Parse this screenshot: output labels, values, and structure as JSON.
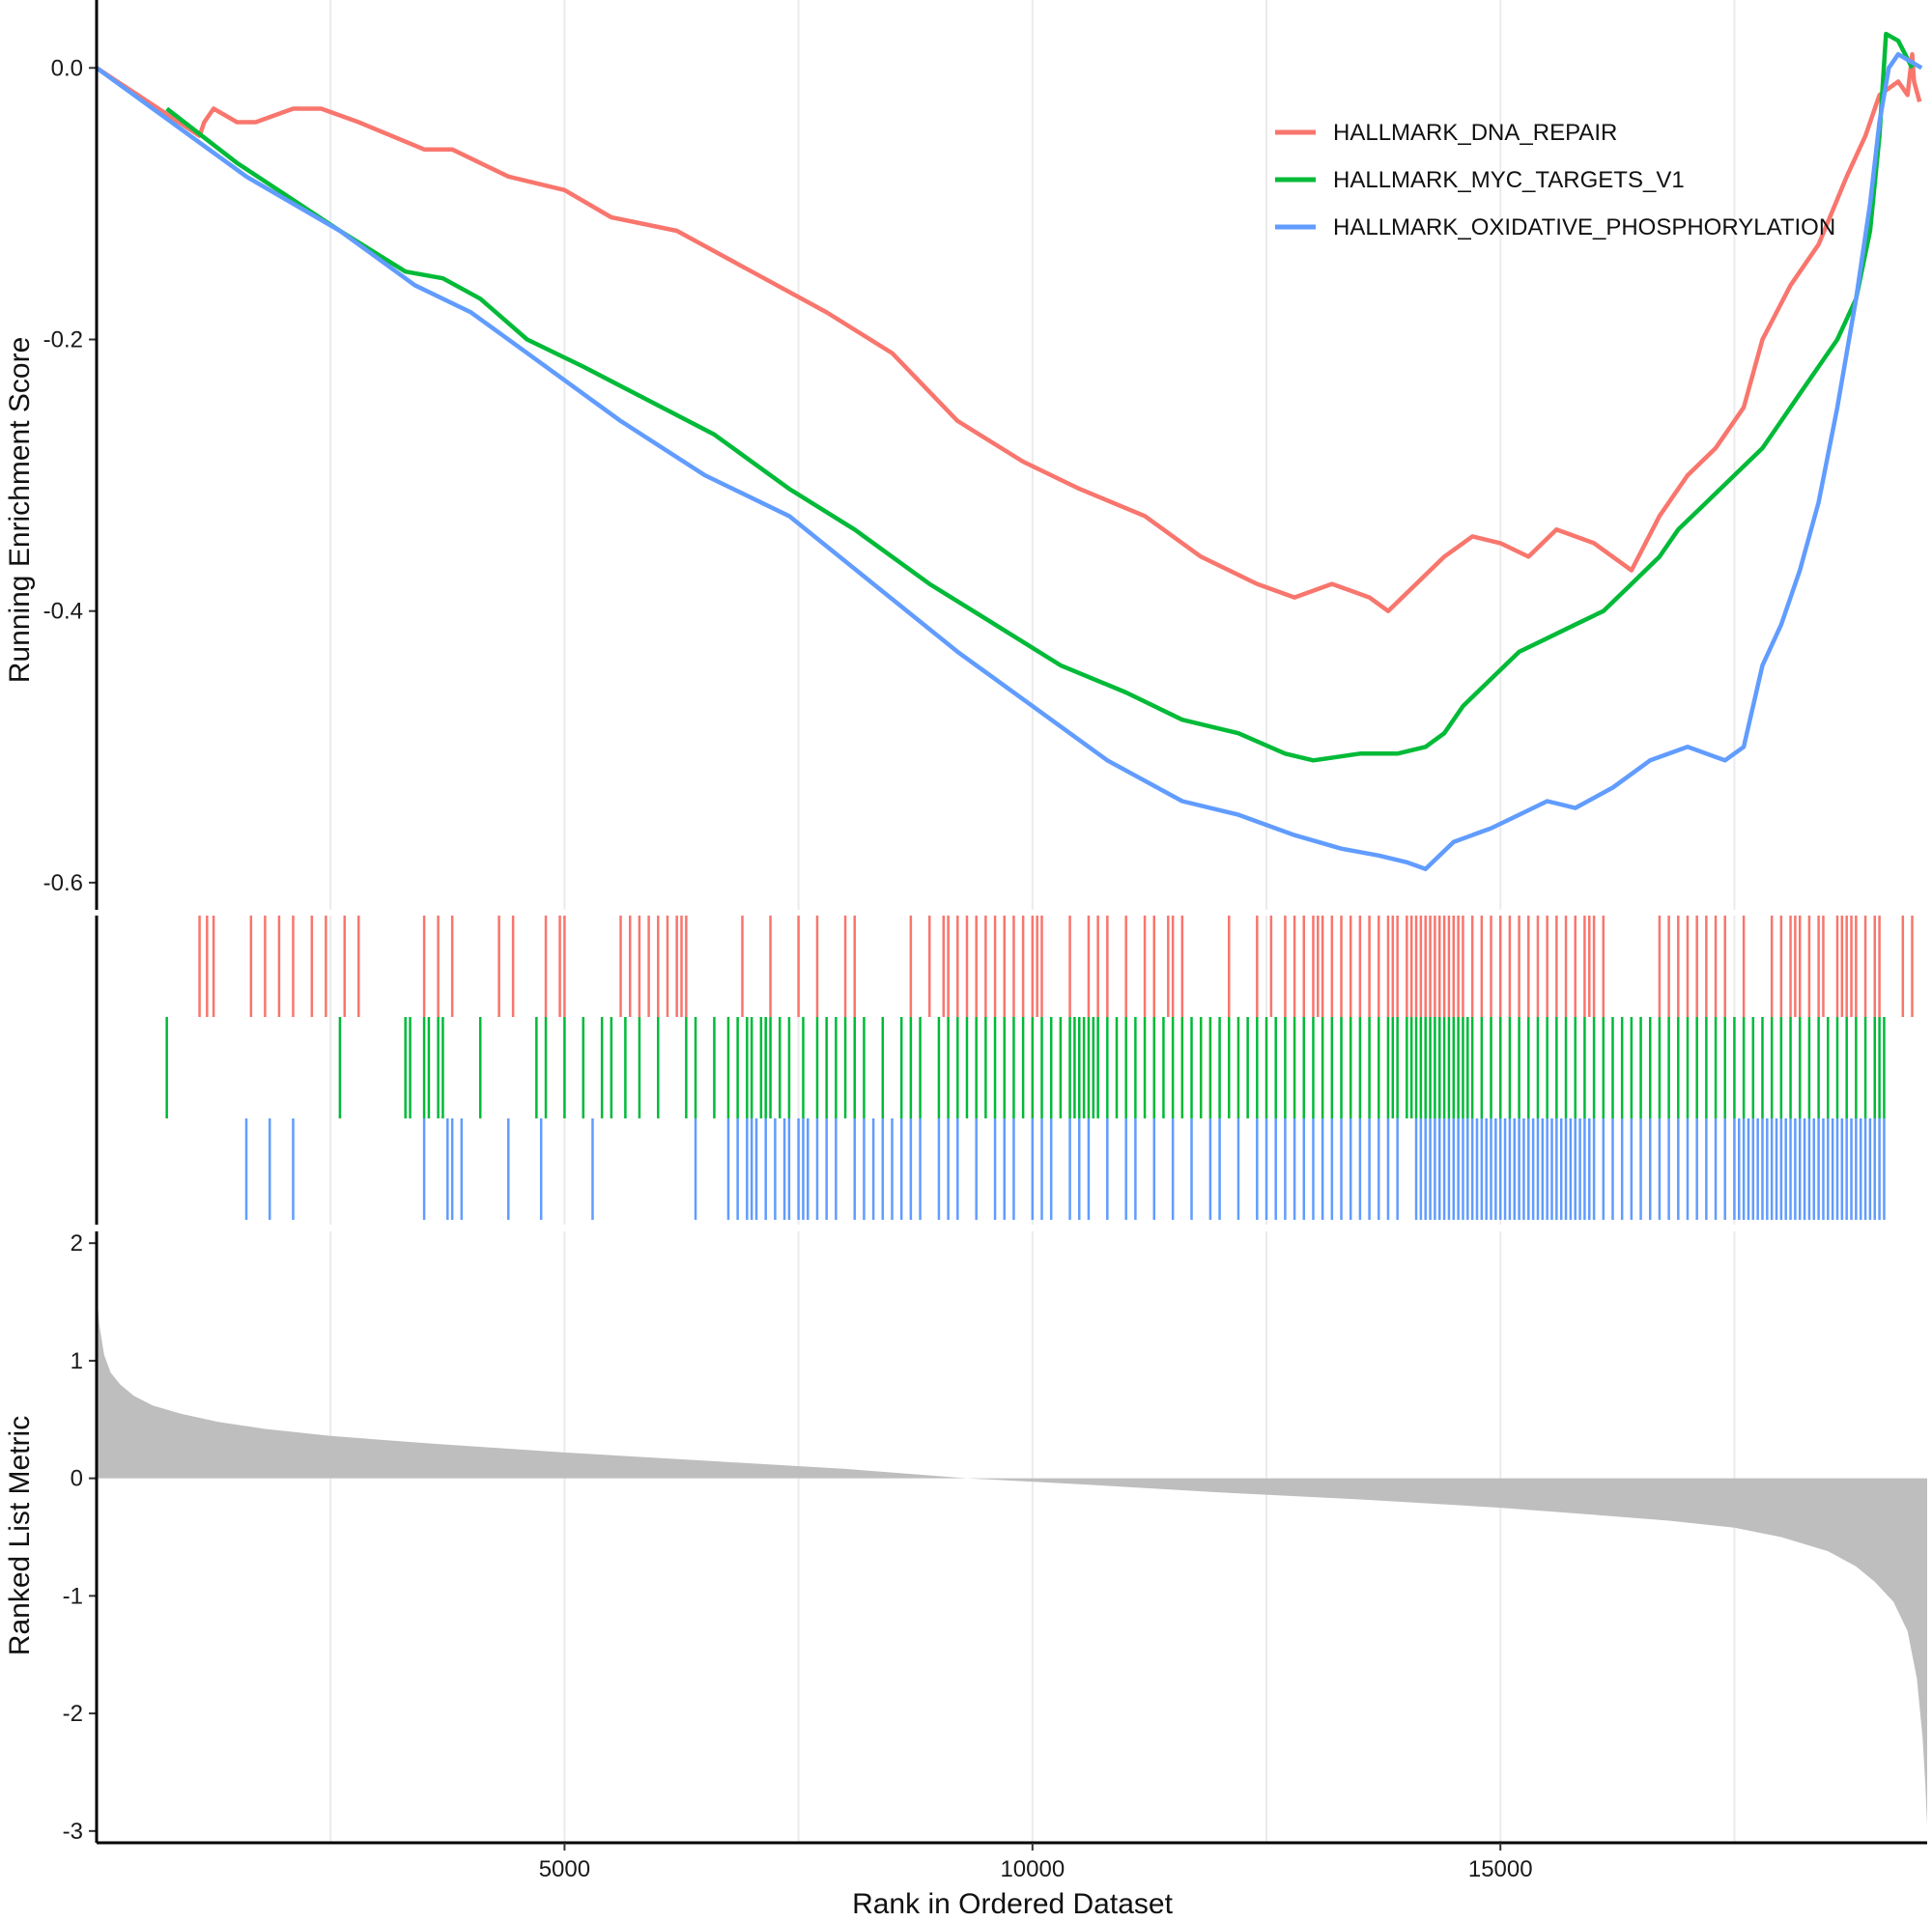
{
  "chart_data": {
    "type": "line",
    "xlabel": "Rank in Ordered Dataset",
    "xlim": [
      0,
      19560
    ],
    "x_ticks": [
      5000,
      10000,
      15000
    ],
    "x_tick_labels": [
      "5000",
      "10000",
      "15000"
    ],
    "legend_position": "top-right",
    "grid": "vertical major gridlines only",
    "es_panel": {
      "ylabel": "Running Enrichment Score",
      "ylim": [
        -0.62,
        0.05
      ],
      "y_ticks": [
        0.0,
        -0.2,
        -0.4,
        -0.6
      ],
      "y_tick_labels": [
        "0.0",
        "-0.2",
        "-0.4",
        "-0.6"
      ]
    },
    "rank_panel": {
      "ylabel": "Ranked List Metric",
      "ylim": [
        -3.1,
        2.1
      ],
      "y_ticks": [
        2,
        1,
        0,
        -1,
        -2,
        -3
      ],
      "y_tick_labels": [
        "2",
        "1",
        "0",
        "-1",
        "-2",
        "-3"
      ],
      "fill_color": "#bebebe",
      "metric": [
        [
          0,
          1.6
        ],
        [
          30,
          1.3
        ],
        [
          80,
          1.05
        ],
        [
          150,
          0.9
        ],
        [
          250,
          0.8
        ],
        [
          400,
          0.7
        ],
        [
          600,
          0.62
        ],
        [
          900,
          0.55
        ],
        [
          1300,
          0.48
        ],
        [
          1800,
          0.42
        ],
        [
          2500,
          0.36
        ],
        [
          3500,
          0.3
        ],
        [
          5000,
          0.22
        ],
        [
          6500,
          0.15
        ],
        [
          8000,
          0.08
        ],
        [
          9300,
          0.0
        ],
        [
          10500,
          -0.05
        ],
        [
          12000,
          -0.12
        ],
        [
          13500,
          -0.18
        ],
        [
          15000,
          -0.25
        ],
        [
          16000,
          -0.31
        ],
        [
          16800,
          -0.36
        ],
        [
          17500,
          -0.42
        ],
        [
          18000,
          -0.5
        ],
        [
          18500,
          -0.62
        ],
        [
          18800,
          -0.75
        ],
        [
          19000,
          -0.88
        ],
        [
          19200,
          -1.05
        ],
        [
          19350,
          -1.3
        ],
        [
          19450,
          -1.7
        ],
        [
          19510,
          -2.2
        ],
        [
          19540,
          -2.6
        ],
        [
          19560,
          -2.95
        ]
      ]
    },
    "series": [
      {
        "name": "HALLMARK_DNA_REPAIR",
        "color": "#f8766d",
        "es": [
          [
            0,
            0.0
          ],
          [
            1100,
            -0.05
          ],
          [
            1150,
            -0.04
          ],
          [
            1250,
            -0.03
          ],
          [
            1500,
            -0.04
          ],
          [
            1700,
            -0.04
          ],
          [
            2100,
            -0.03
          ],
          [
            2400,
            -0.03
          ],
          [
            2800,
            -0.04
          ],
          [
            3500,
            -0.06
          ],
          [
            3800,
            -0.06
          ],
          [
            4400,
            -0.08
          ],
          [
            5000,
            -0.09
          ],
          [
            5500,
            -0.11
          ],
          [
            6200,
            -0.12
          ],
          [
            7000,
            -0.15
          ],
          [
            7800,
            -0.18
          ],
          [
            8500,
            -0.21
          ],
          [
            9200,
            -0.26
          ],
          [
            9900,
            -0.29
          ],
          [
            10500,
            -0.31
          ],
          [
            11200,
            -0.33
          ],
          [
            11800,
            -0.36
          ],
          [
            12400,
            -0.38
          ],
          [
            12800,
            -0.39
          ],
          [
            13200,
            -0.38
          ],
          [
            13600,
            -0.39
          ],
          [
            13800,
            -0.4
          ],
          [
            14100,
            -0.38
          ],
          [
            14400,
            -0.36
          ],
          [
            14700,
            -0.345
          ],
          [
            15000,
            -0.35
          ],
          [
            15300,
            -0.36
          ],
          [
            15600,
            -0.34
          ],
          [
            16000,
            -0.35
          ],
          [
            16400,
            -0.37
          ],
          [
            16700,
            -0.33
          ],
          [
            17000,
            -0.3
          ],
          [
            17300,
            -0.28
          ],
          [
            17600,
            -0.25
          ],
          [
            17800,
            -0.2
          ],
          [
            18100,
            -0.16
          ],
          [
            18400,
            -0.13
          ],
          [
            18700,
            -0.08
          ],
          [
            18900,
            -0.05
          ],
          [
            19050,
            -0.02
          ],
          [
            19250,
            -0.01
          ],
          [
            19350,
            -0.02
          ],
          [
            19400,
            0.01
          ],
          [
            19420,
            -0.01
          ],
          [
            19480,
            -0.025
          ]
        ],
        "hits": [
          1100,
          1180,
          1250,
          1650,
          1800,
          1950,
          2100,
          2300,
          2450,
          2650,
          2800,
          3500,
          3650,
          3800,
          4300,
          4450,
          4800,
          4950,
          5000,
          5600,
          5700,
          5800,
          5900,
          6000,
          6100,
          6200,
          6250,
          6300,
          6900,
          7200,
          7500,
          7700,
          8000,
          8100,
          8700,
          8900,
          9050,
          9100,
          9200,
          9300,
          9400,
          9500,
          9600,
          9700,
          9800,
          9900,
          10000,
          10050,
          10100,
          10400,
          10600,
          10700,
          10800,
          11000,
          11200,
          11300,
          11450,
          11500,
          11600,
          12100,
          12400,
          12550,
          12700,
          12800,
          12900,
          13000,
          13050,
          13100,
          13200,
          13300,
          13400,
          13500,
          13600,
          13700,
          13800,
          13850,
          13900,
          14000,
          14050,
          14100,
          14150,
          14200,
          14250,
          14300,
          14350,
          14400,
          14450,
          14500,
          14550,
          14600,
          14700,
          14800,
          14900,
          15000,
          15100,
          15200,
          15300,
          15400,
          15500,
          15600,
          15700,
          15800,
          15900,
          15950,
          16000,
          16100,
          16700,
          16800,
          16900,
          17000,
          17100,
          17200,
          17300,
          17400,
          17600,
          17900,
          18000,
          18100,
          18150,
          18200,
          18300,
          18400,
          18450,
          18600,
          18650,
          18700,
          18750,
          18800,
          18900,
          19000,
          19050,
          19300,
          19400
        ]
      },
      {
        "name": "HALLMARK_MYC_TARGETS_V1",
        "color": "#00ba38",
        "es": [
          [
            750,
            -0.03
          ],
          [
            1500,
            -0.07
          ],
          [
            2600,
            -0.12
          ],
          [
            3300,
            -0.15
          ],
          [
            3700,
            -0.155
          ],
          [
            4100,
            -0.17
          ],
          [
            4600,
            -0.2
          ],
          [
            5200,
            -0.22
          ],
          [
            5900,
            -0.245
          ],
          [
            6600,
            -0.27
          ],
          [
            7400,
            -0.31
          ],
          [
            8100,
            -0.34
          ],
          [
            8900,
            -0.38
          ],
          [
            9600,
            -0.41
          ],
          [
            10300,
            -0.44
          ],
          [
            11000,
            -0.46
          ],
          [
            11600,
            -0.48
          ],
          [
            12200,
            -0.49
          ],
          [
            12700,
            -0.505
          ],
          [
            13000,
            -0.51
          ],
          [
            13500,
            -0.505
          ],
          [
            13900,
            -0.505
          ],
          [
            14200,
            -0.5
          ],
          [
            14400,
            -0.49
          ],
          [
            14600,
            -0.47
          ],
          [
            14900,
            -0.45
          ],
          [
            15200,
            -0.43
          ],
          [
            15500,
            -0.42
          ],
          [
            15800,
            -0.41
          ],
          [
            16100,
            -0.4
          ],
          [
            16400,
            -0.38
          ],
          [
            16700,
            -0.36
          ],
          [
            16900,
            -0.34
          ],
          [
            17200,
            -0.32
          ],
          [
            17500,
            -0.3
          ],
          [
            17800,
            -0.28
          ],
          [
            18000,
            -0.26
          ],
          [
            18200,
            -0.24
          ],
          [
            18400,
            -0.22
          ],
          [
            18600,
            -0.2
          ],
          [
            18800,
            -0.17
          ],
          [
            18950,
            -0.12
          ],
          [
            19050,
            -0.05
          ],
          [
            19120,
            0.025
          ],
          [
            19250,
            0.02
          ],
          [
            19400,
            0.0
          ]
        ],
        "hits": [
          750,
          2600,
          3300,
          3350,
          3500,
          3550,
          3650,
          3700,
          4100,
          4700,
          4800,
          5000,
          5200,
          5400,
          5500,
          5650,
          5800,
          6000,
          6300,
          6400,
          6600,
          6750,
          6850,
          6950,
          7000,
          7100,
          7150,
          7200,
          7300,
          7400,
          7550,
          7700,
          7800,
          7900,
          8000,
          8100,
          8200,
          8400,
          8600,
          8700,
          8800,
          9000,
          9100,
          9200,
          9300,
          9400,
          9500,
          9600,
          9700,
          9800,
          9900,
          10000,
          10100,
          10200,
          10300,
          10400,
          10450,
          10500,
          10550,
          10600,
          10650,
          10700,
          10800,
          10900,
          11000,
          11100,
          11200,
          11300,
          11400,
          11500,
          11600,
          11700,
          11800,
          11900,
          12000,
          12100,
          12200,
          12300,
          12400,
          12500,
          12600,
          12700,
          12800,
          12900,
          13000,
          13100,
          13200,
          13300,
          13400,
          13500,
          13600,
          13700,
          13800,
          13850,
          13900,
          14000,
          14050,
          14100,
          14150,
          14200,
          14250,
          14300,
          14350,
          14400,
          14450,
          14500,
          14550,
          14600,
          14650,
          14700,
          14800,
          14900,
          15000,
          15100,
          15200,
          15300,
          15400,
          15500,
          15600,
          15700,
          15800,
          15900,
          16000,
          16100,
          16200,
          16300,
          16400,
          16500,
          16600,
          16700,
          16800,
          16900,
          17000,
          17100,
          17200,
          17300,
          17400,
          17500,
          17600,
          17700,
          17800,
          17900,
          18000,
          18100,
          18200,
          18300,
          18400,
          18500,
          18600,
          18700,
          18800,
          18900,
          19000,
          19050,
          19100
        ]
      },
      {
        "name": "HALLMARK_OXIDATIVE_PHOSPHORYLATION",
        "color": "#619cff",
        "es": [
          [
            0,
            0.0
          ],
          [
            800,
            -0.04
          ],
          [
            1600,
            -0.08
          ],
          [
            2600,
            -0.12
          ],
          [
            3400,
            -0.16
          ],
          [
            4000,
            -0.18
          ],
          [
            4800,
            -0.22
          ],
          [
            5600,
            -0.26
          ],
          [
            6500,
            -0.3
          ],
          [
            7400,
            -0.33
          ],
          [
            8300,
            -0.38
          ],
          [
            9200,
            -0.43
          ],
          [
            10000,
            -0.47
          ],
          [
            10800,
            -0.51
          ],
          [
            11600,
            -0.54
          ],
          [
            12200,
            -0.55
          ],
          [
            12800,
            -0.565
          ],
          [
            13300,
            -0.575
          ],
          [
            13700,
            -0.58
          ],
          [
            14000,
            -0.585
          ],
          [
            14200,
            -0.59
          ],
          [
            14500,
            -0.57
          ],
          [
            14900,
            -0.56
          ],
          [
            15200,
            -0.55
          ],
          [
            15500,
            -0.54
          ],
          [
            15800,
            -0.545
          ],
          [
            16200,
            -0.53
          ],
          [
            16600,
            -0.51
          ],
          [
            17000,
            -0.5
          ],
          [
            17400,
            -0.51
          ],
          [
            17600,
            -0.5
          ],
          [
            17800,
            -0.44
          ],
          [
            18000,
            -0.41
          ],
          [
            18200,
            -0.37
          ],
          [
            18400,
            -0.32
          ],
          [
            18600,
            -0.25
          ],
          [
            18800,
            -0.17
          ],
          [
            18950,
            -0.1
          ],
          [
            19050,
            -0.04
          ],
          [
            19150,
            0.0
          ],
          [
            19250,
            0.01
          ],
          [
            19500,
            0.0
          ]
        ],
        "hits": [
          1600,
          1850,
          2100,
          3500,
          3750,
          3800,
          3900,
          4400,
          4750,
          5300,
          6400,
          6750,
          6850,
          6950,
          7000,
          7050,
          7150,
          7250,
          7350,
          7400,
          7500,
          7550,
          7600,
          7700,
          7800,
          7900,
          8100,
          8200,
          8300,
          8400,
          8500,
          8600,
          8700,
          8800,
          9000,
          9100,
          9200,
          9400,
          9600,
          9700,
          9800,
          10000,
          10100,
          10200,
          10400,
          10500,
          10600,
          10800,
          11000,
          11100,
          11300,
          11500,
          11700,
          11900,
          12000,
          12200,
          12400,
          12500,
          12600,
          12700,
          12800,
          12900,
          13000,
          13100,
          13200,
          13300,
          13400,
          13500,
          13600,
          13700,
          13800,
          13900,
          14100,
          14150,
          14200,
          14250,
          14300,
          14350,
          14400,
          14450,
          14500,
          14550,
          14600,
          14650,
          14700,
          14750,
          14800,
          14850,
          14900,
          14950,
          15000,
          15050,
          15100,
          15150,
          15200,
          15250,
          15300,
          15350,
          15400,
          15450,
          15500,
          15550,
          15600,
          15650,
          15700,
          15750,
          15800,
          15850,
          15900,
          15950,
          16000,
          16100,
          16200,
          16300,
          16400,
          16500,
          16600,
          16700,
          16800,
          16900,
          17000,
          17100,
          17200,
          17300,
          17400,
          17500,
          17550,
          17600,
          17650,
          17700,
          17750,
          17800,
          17850,
          17900,
          17950,
          18000,
          18050,
          18100,
          18150,
          18200,
          18250,
          18300,
          18350,
          18400,
          18450,
          18500,
          18550,
          18600,
          18650,
          18700,
          18750,
          18800,
          18850,
          18900,
          18950,
          19000,
          19050,
          19100
        ]
      }
    ]
  }
}
